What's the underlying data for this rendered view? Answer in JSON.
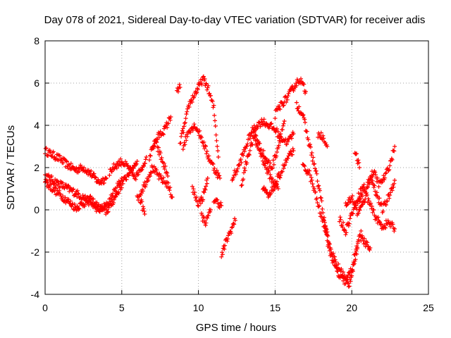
{
  "chart_data": {
    "type": "scatter",
    "title": "Day 078 of 2021, Sidereal Day-to-day VTEC variation (SDTVAR) for receiver adis",
    "xlabel": "GPS time / hours",
    "ylabel": "SDTVAR / TECUs",
    "xlim": [
      0,
      25
    ],
    "ylim": [
      -4,
      8
    ],
    "xticks": [
      0,
      5,
      10,
      15,
      20,
      25
    ],
    "yticks": [
      -4,
      -2,
      0,
      2,
      4,
      6,
      8
    ],
    "xtick_labels": [
      "0",
      "5",
      "10",
      "15",
      "20",
      "25"
    ],
    "ytick_labels": [
      "-4",
      "-2",
      "0",
      "2",
      "4",
      "6",
      "8"
    ],
    "grid": true,
    "marker": "+",
    "series": [
      {
        "name": "SDTVAR",
        "color": "#ff0000",
        "tracks": [
          {
            "x": [
              0,
              0.5,
              1,
              1.5,
              2,
              2.5,
              3,
              3.5,
              4
            ],
            "y": [
              2.8,
              2.6,
              2.4,
              2.1,
              1.9,
              2.0,
              1.7,
              1.3,
              1.5
            ]
          },
          {
            "x": [
              0,
              0.5,
              1,
              1.5,
              2,
              2.5,
              3,
              3.5,
              4,
              4.5,
              5
            ],
            "y": [
              1.6,
              1.4,
              1.2,
              1.0,
              0.8,
              0.6,
              0.3,
              0.0,
              0.2,
              0.8,
              1.5
            ]
          },
          {
            "x": [
              0,
              0.5,
              1,
              1.5,
              2,
              2.5,
              3,
              3.5,
              4,
              4.5,
              5,
              5.5,
              6
            ],
            "y": [
              1.3,
              1.0,
              0.7,
              0.4,
              0.1,
              0.3,
              0.5,
              0.1,
              -0.1,
              0.5,
              1.2,
              1.8,
              2.3
            ]
          },
          {
            "x": [
              4.2,
              4.6,
              5,
              5.4,
              5.8,
              6.2,
              6.6
            ],
            "y": [
              1.8,
              2.1,
              2.3,
              2.0,
              1.5,
              1.8,
              2.5
            ]
          },
          {
            "x": [
              6,
              6.5,
              7,
              7.5,
              8,
              8.3
            ],
            "y": [
              0.5,
              1.2,
              2.0,
              1.5,
              1.2,
              0.6
            ]
          },
          {
            "x": [
              7,
              7.4,
              7.8,
              8.2
            ],
            "y": [
              3.0,
              3.5,
              3.8,
              4.4
            ]
          },
          {
            "x": [
              6.8,
              7.2,
              7.6,
              8.0
            ],
            "y": [
              2.5,
              3.2,
              2.4,
              1.6
            ]
          },
          {
            "x": [
              6.2,
              6.5
            ],
            "y": [
              0.5,
              -0.2
            ]
          },
          {
            "x": [
              8.6,
              8.8
            ],
            "y": [
              5.6,
              5.8
            ]
          },
          {
            "x": [
              8.8,
              9.1,
              9.4,
              9.7,
              10,
              10.3,
              10.6,
              11,
              11.3
            ],
            "y": [
              3.2,
              4.0,
              5.0,
              5.4,
              5.8,
              6.2,
              5.8,
              4.8,
              2.5
            ]
          },
          {
            "x": [
              9,
              9.4,
              9.8,
              10.2,
              10.6,
              11,
              11.4
            ],
            "y": [
              3.0,
              3.8,
              4.0,
              3.4,
              2.6,
              2.0,
              1.5
            ]
          },
          {
            "x": [
              9.6,
              10,
              10.3,
              10.6
            ],
            "y": [
              1.0,
              0.3,
              0.6,
              1.5
            ]
          },
          {
            "x": [
              10.2,
              10.5,
              10.8
            ],
            "y": [
              -0.3,
              -0.6,
              0.0
            ]
          },
          {
            "x": [
              11,
              11.5
            ],
            "y": [
              0.5,
              0.2
            ]
          },
          {
            "x": [
              11.5,
              11.8,
              12.1,
              12.4
            ],
            "y": [
              -2.2,
              -1.5,
              -1.0,
              -0.5
            ]
          },
          {
            "x": [
              12.2,
              12.6,
              13,
              13.4,
              13.8,
              14.2,
              14.6,
              15,
              15.4,
              15.8,
              16.2
            ],
            "y": [
              1.5,
              2.0,
              2.8,
              3.6,
              4.0,
              4.2,
              4.0,
              3.8,
              3.4,
              3.2,
              3.6
            ]
          },
          {
            "x": [
              12.8,
              13.2,
              13.6,
              14,
              14.4,
              14.8,
              15.2
            ],
            "y": [
              1.2,
              2.5,
              3.4,
              2.8,
              2.0,
              1.4,
              1.0
            ]
          },
          {
            "x": [
              13.6,
              14,
              14.4,
              14.8,
              15.2,
              15.6
            ],
            "y": [
              3.8,
              3.0,
              2.4,
              2.0,
              3.0,
              4.2
            ]
          },
          {
            "x": [
              14.2,
              14.6,
              15,
              15.4,
              15.8,
              16.2
            ],
            "y": [
              1.0,
              0.6,
              1.2,
              1.8,
              2.4,
              2.8
            ]
          },
          {
            "x": [
              15,
              15.4,
              15.8,
              16.2,
              16.6,
              17
            ],
            "y": [
              4.5,
              5.0,
              5.3,
              5.8,
              6.2,
              5.6
            ]
          },
          {
            "x": [
              16.4,
              16.8,
              17.2,
              17.6,
              18,
              18.4,
              18.8,
              19.2,
              19.6,
              20,
              20.4
            ],
            "y": [
              5.0,
              4.5,
              3.2,
              2.0,
              0.5,
              -1.5,
              -2.5,
              -3.2,
              -3.4,
              -2.8,
              -1.5
            ]
          },
          {
            "x": [
              16.8,
              17.2,
              17.6,
              18,
              18.4
            ],
            "y": [
              2.0,
              1.8,
              0.8,
              -0.3,
              -1.2
            ]
          },
          {
            "x": [
              17.8,
              18.2,
              18.4
            ],
            "y": [
              3.6,
              3.4,
              3.0
            ]
          },
          {
            "x": [
              18.2,
              18.6,
              19,
              19.4,
              19.8,
              20.2,
              20.6
            ],
            "y": [
              -0.6,
              -1.8,
              -2.6,
              -3.0,
              -3.6,
              -2.4,
              -1.0
            ]
          },
          {
            "x": [
              19.2,
              19.6,
              20,
              20.4,
              20.8
            ],
            "y": [
              -0.4,
              -1.0,
              -0.2,
              0.6,
              1.2
            ]
          },
          {
            "x": [
              19.6,
              20,
              20.4,
              20.8,
              21.2,
              21.6,
              22,
              22.4,
              22.8
            ],
            "y": [
              0.2,
              0.6,
              -0.2,
              0.4,
              1.6,
              0.8,
              0.0,
              0.6,
              1.4
            ]
          },
          {
            "x": [
              20.4,
              20.8,
              21.2,
              21.6,
              22,
              22.4,
              22.8
            ],
            "y": [
              0.3,
              1.0,
              0.2,
              -0.4,
              -0.8,
              -0.6,
              -0.9
            ]
          },
          {
            "x": [
              21,
              21.4,
              21.8,
              22.2,
              22.6,
              22.8
            ],
            "y": [
              1.2,
              1.8,
              1.2,
              1.6,
              2.4,
              3.0
            ]
          },
          {
            "x": [
              20.6,
              20.9,
              21.2
            ],
            "y": [
              -1.3,
              -1.6,
              -1.8
            ]
          },
          {
            "x": [
              20.2,
              20.5
            ],
            "y": [
              2.8,
              2.0
            ]
          }
        ]
      }
    ]
  }
}
